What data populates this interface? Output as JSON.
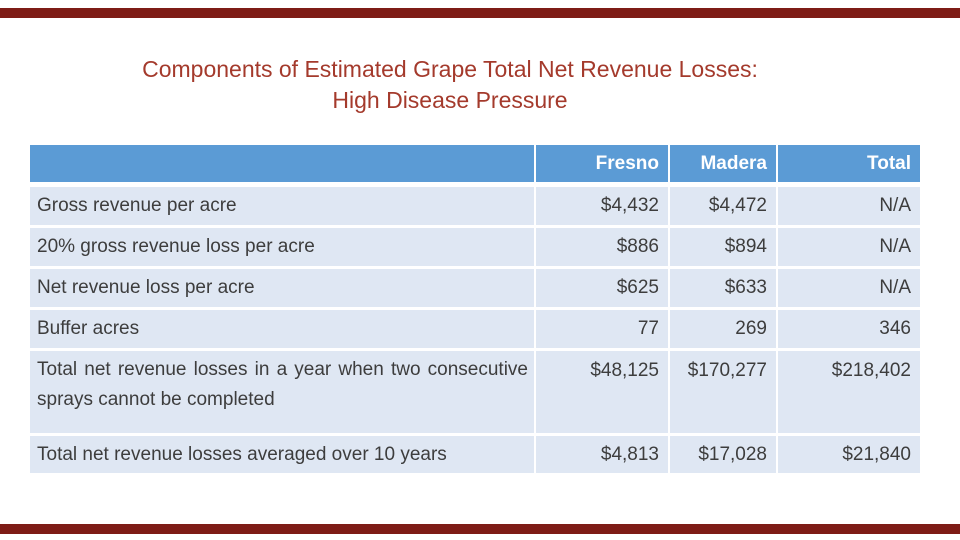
{
  "title": {
    "line1": "Components of Estimated Grape Total Net Revenue Losses:",
    "line2": "High Disease Pressure"
  },
  "table": {
    "column_headers": [
      "Fresno",
      "Madera",
      "Total"
    ],
    "rows": [
      {
        "label": "Gross revenue per acre",
        "values": [
          "$4,432",
          "$4,472",
          "N/A"
        ]
      },
      {
        "label": "20% gross revenue loss per acre",
        "values": [
          "$886",
          "$894",
          "N/A"
        ]
      },
      {
        "label": "Net revenue loss per acre",
        "values": [
          "$625",
          "$633",
          "N/A"
        ]
      },
      {
        "label": "Buffer acres",
        "values": [
          "77",
          "269",
          "346"
        ]
      },
      {
        "label": "Total net revenue losses in a year when two consecutive sprays cannot be completed",
        "values": [
          "$48,125",
          "$170,277",
          "$218,402"
        ]
      },
      {
        "label": "Total net revenue losses averaged over 10 years",
        "values": [
          "$4,813",
          "$17,028",
          "$21,840"
        ]
      }
    ]
  },
  "colors": {
    "header_fill": "#5B9BD5",
    "header_text": "#FFFFFF",
    "row_fill": "#DFE7F3",
    "body_text": "#3D3D3D",
    "title_text": "#A43A2C",
    "border_bar": "#7E1C16"
  }
}
